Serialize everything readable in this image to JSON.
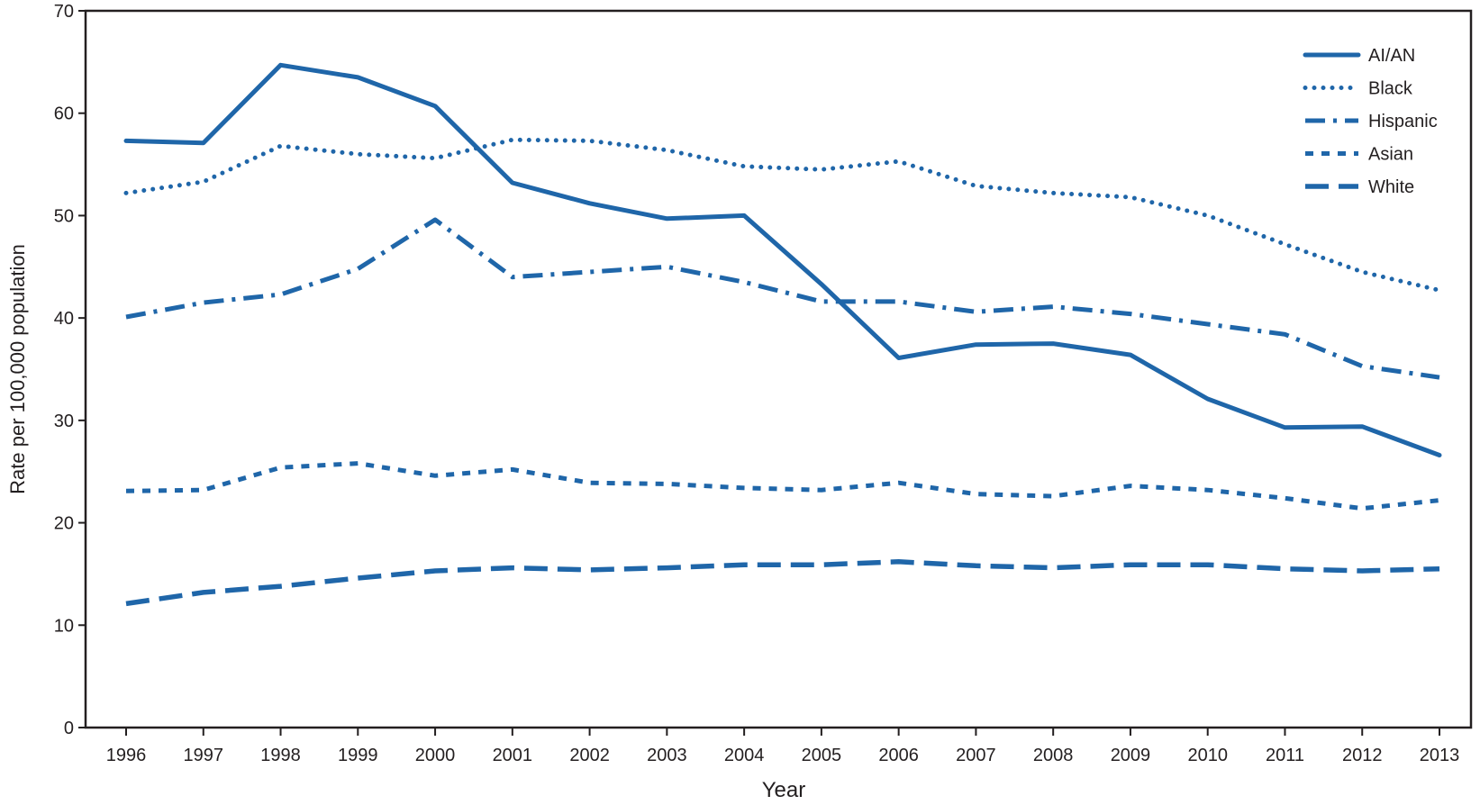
{
  "chart_data": {
    "type": "line",
    "title": "",
    "xlabel": "Year",
    "ylabel": "Rate per 100,000 population",
    "ylim": [
      0,
      70
    ],
    "yticks": [
      "0",
      "10",
      "20",
      "30",
      "40",
      "50",
      "60",
      "70"
    ],
    "categories": [
      "1996",
      "1997",
      "1998",
      "1999",
      "2000",
      "2001",
      "2002",
      "2003",
      "2004",
      "2005",
      "2006",
      "2007",
      "2008",
      "2009",
      "2010",
      "2011",
      "2012",
      "2013"
    ],
    "grid": false,
    "legend_position": "top-right",
    "line_color": "#1f66a9",
    "series": [
      {
        "name": "AI/AN",
        "style": "solid",
        "values": [
          57.3,
          57.1,
          64.7,
          63.5,
          60.7,
          53.2,
          51.2,
          49.7,
          50.0,
          43.3,
          36.1,
          37.4,
          37.5,
          36.4,
          32.1,
          29.3,
          29.4,
          26.6
        ]
      },
      {
        "name": "Black",
        "style": "dotted",
        "values": [
          52.2,
          53.3,
          56.8,
          56.0,
          55.6,
          57.4,
          57.3,
          56.4,
          54.8,
          54.5,
          55.3,
          52.9,
          52.2,
          51.8,
          50.0,
          47.2,
          44.5,
          42.7
        ]
      },
      {
        "name": "Hispanic",
        "style": "dash-dot",
        "values": [
          40.1,
          41.5,
          42.3,
          44.8,
          49.6,
          44.0,
          44.5,
          45.0,
          43.5,
          41.6,
          41.6,
          40.6,
          41.1,
          40.4,
          39.4,
          38.4,
          35.3,
          34.2
        ]
      },
      {
        "name": "Asian",
        "style": "short-dash",
        "values": [
          23.1,
          23.2,
          25.4,
          25.8,
          24.6,
          25.2,
          23.9,
          23.8,
          23.4,
          23.2,
          23.9,
          22.8,
          22.6,
          23.6,
          23.2,
          22.4,
          21.4,
          22.2
        ]
      },
      {
        "name": "White",
        "style": "long-dash",
        "values": [
          12.1,
          13.2,
          13.8,
          14.6,
          15.3,
          15.6,
          15.4,
          15.6,
          15.9,
          15.9,
          16.2,
          15.8,
          15.6,
          15.9,
          15.9,
          15.5,
          15.3,
          15.5
        ]
      }
    ]
  }
}
